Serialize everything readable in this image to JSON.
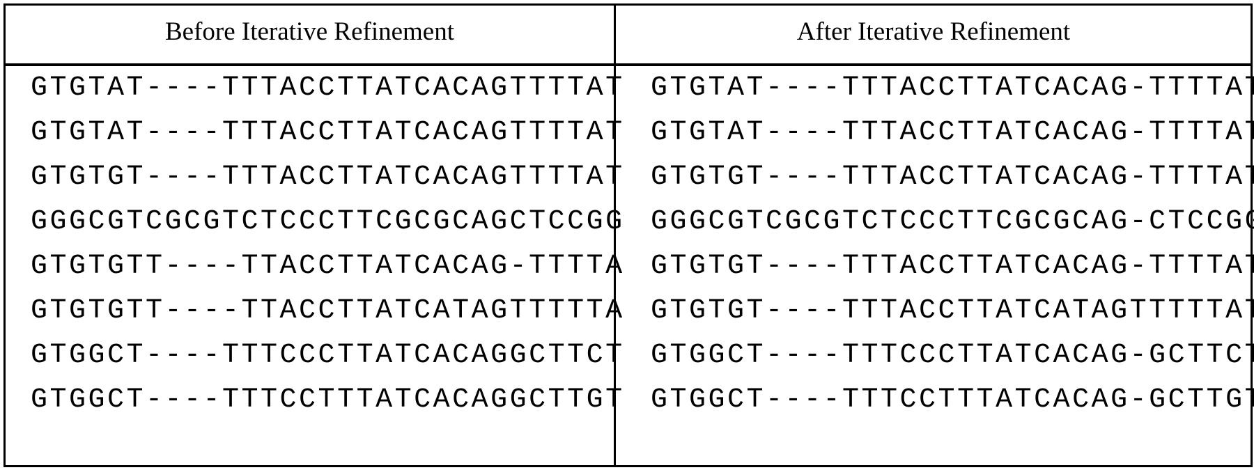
{
  "headers": {
    "before": "Before Iterative Refinement",
    "after": "After Iterative Refinement"
  },
  "before": [
    "GTGTAT----TTTACCTTATCACAGTTTTAT",
    "GTGTAT----TTTACCTTATCACAGTTTTAT",
    "GTGTGT----TTTACCTTATCACAGTTTTAT",
    "GGGCGTCGCGTCTCCCTTCGCGCAGCTCCGG",
    "GTGTGTT----TTACCTTATCACAG-TTTTA",
    "GTGTGTT----TTACCTTATCATAGTTTTTA",
    "GTGGCT----TTTCCCTTATCACAGGCTTCT",
    "GTGGCT----TTTCCTTTATCACAGGCTTGT"
  ],
  "after": [
    "GTGTAT----TTTACCTTATCACAG-TTTTAT",
    "GTGTAT----TTTACCTTATCACAG-TTTTAT",
    "GTGTGT----TTTACCTTATCACAG-TTTTAT",
    "GGGCGTCGCGTCTCCCTTCGCGCAG-CTCCGG",
    "GTGTGT----TTTACCTTATCACAG-TTTTAT",
    "GTGTGT----TTTACCTTATCATAGTTTTTAT",
    "GTGGCT----TTTCCCTTATCACAG-GCTTCT",
    "GTGGCT----TTTCCTTTATCACAG-GCTTGT"
  ]
}
